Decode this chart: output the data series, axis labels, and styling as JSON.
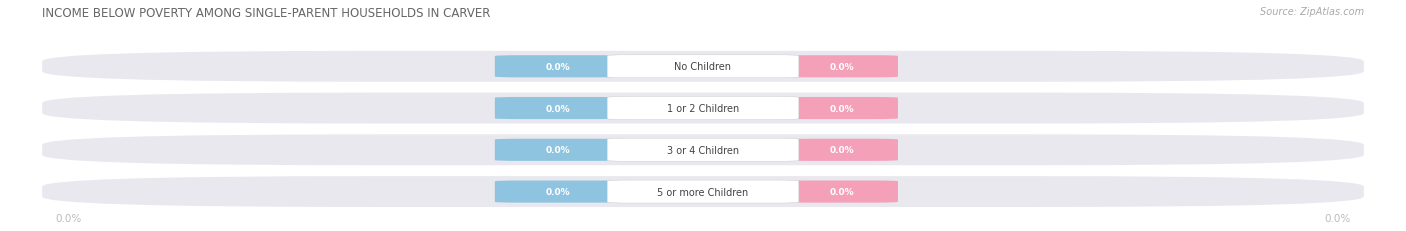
{
  "title": "INCOME BELOW POVERTY AMONG SINGLE-PARENT HOUSEHOLDS IN CARVER",
  "source_text": "Source: ZipAtlas.com",
  "categories": [
    "No Children",
    "1 or 2 Children",
    "3 or 4 Children",
    "5 or more Children"
  ],
  "father_values": [
    "0.0%",
    "0.0%",
    "0.0%",
    "0.0%"
  ],
  "mother_values": [
    "0.0%",
    "0.0%",
    "0.0%",
    "0.0%"
  ],
  "father_color": "#8ec4e0",
  "mother_color": "#f4a0b8",
  "bar_bg_color": "#e8e8ee",
  "row_sep_color": "#ffffff",
  "category_text_color": "#444444",
  "title_color": "#666666",
  "source_color": "#aaaaaa",
  "axis_label_color": "#bbbbbb",
  "background_color": "#ffffff",
  "figsize": [
    14.06,
    2.32
  ],
  "dpi": 100
}
